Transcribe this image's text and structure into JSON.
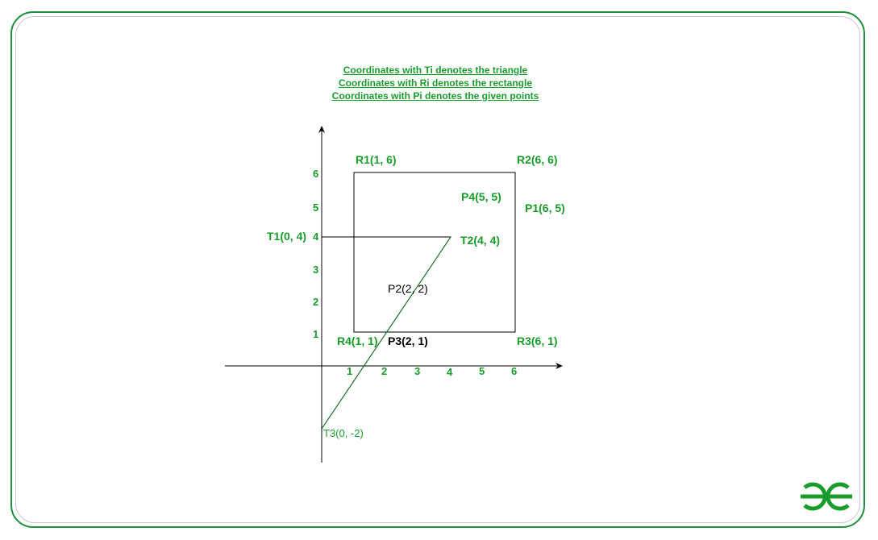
{
  "legend": {
    "line1": "Coordinates with Ti denotes the triangle",
    "line2": "Coordinates with Ri denotes the rectangle",
    "line3": "Coordinates with Pi denotes the given points"
  },
  "axes": {
    "x_ticks": [
      "1",
      "2",
      "3",
      "4",
      "5",
      "6"
    ],
    "y_ticks": [
      "1",
      "2",
      "3",
      "4",
      "5",
      "6"
    ]
  },
  "rectangle": {
    "r1": "R1(1, 6)",
    "r2": "R2(6, 6)",
    "r3": "R3(6, 1)",
    "r4": "R4(1, 1)"
  },
  "triangle": {
    "t1": "T1(0, 4)",
    "t2": "T2(4, 4)",
    "t3": "T3(0, -2)"
  },
  "points": {
    "p1": "P1(6, 5)",
    "p2": "P2(2, 2)",
    "p3": "P3(2, 1)",
    "p4": "P4(5, 5)"
  },
  "colors": {
    "label_green": "#1a9c2c",
    "frame_green": "#1e8f3e",
    "black_label": "#000000"
  },
  "logo": {
    "icon": "gfg-logo-icon"
  }
}
